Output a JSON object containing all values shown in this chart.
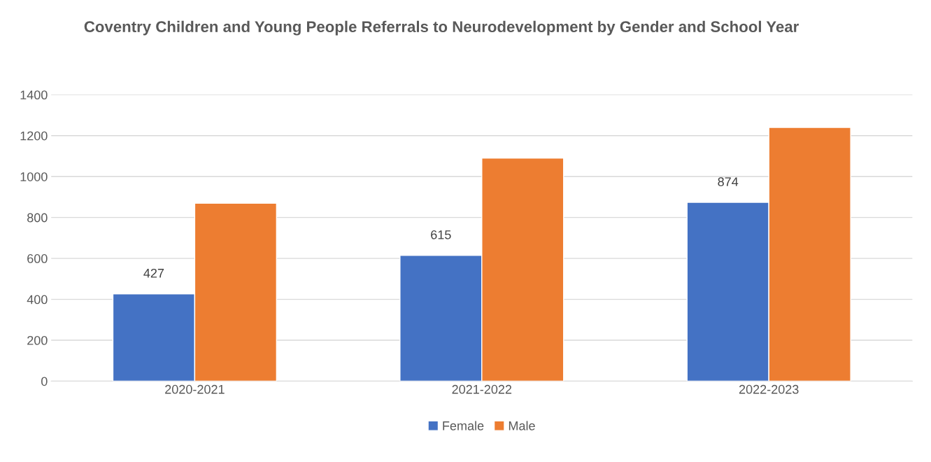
{
  "chart_data": {
    "type": "bar",
    "title": "Coventry Children and Young People Referrals to Neurodevelopment by Gender and School Year",
    "categories": [
      "2020-2021",
      "2021-2022",
      "2022-2023"
    ],
    "series": [
      {
        "name": "Female",
        "color": "#4472c4",
        "values": [
          427,
          615,
          874
        ],
        "value_labels": [
          "427",
          "615",
          "874"
        ]
      },
      {
        "name": "Male",
        "color": "#ed7d31",
        "values": [
          870,
          1090,
          1240
        ]
      }
    ],
    "ylim": [
      0,
      1400
    ],
    "yticks": [
      0,
      200,
      400,
      600,
      800,
      1000,
      1200,
      1400
    ],
    "grid": "y",
    "legend": "bottom"
  }
}
